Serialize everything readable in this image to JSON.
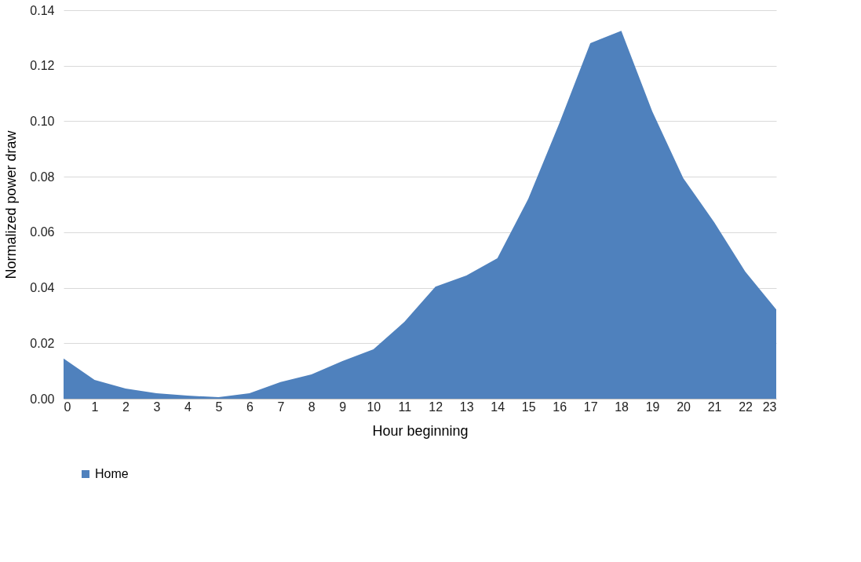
{
  "chart_data": {
    "type": "area",
    "xlabel": "Hour beginning",
    "ylabel": "Normalized power draw",
    "x": [
      0,
      1,
      2,
      3,
      4,
      5,
      6,
      7,
      8,
      9,
      10,
      11,
      12,
      13,
      14,
      15,
      16,
      17,
      18,
      19,
      20,
      21,
      22,
      23
    ],
    "series": [
      {
        "name": "Home",
        "color": "#4f81bd",
        "values": [
          0.0145,
          0.0068,
          0.0037,
          0.002,
          0.0011,
          0.0006,
          0.002,
          0.006,
          0.0088,
          0.0136,
          0.0178,
          0.0277,
          0.0404,
          0.0444,
          0.0506,
          0.0721,
          0.0993,
          0.1281,
          0.1326,
          0.1035,
          0.0795,
          0.0636,
          0.0458,
          0.0322
        ]
      }
    ],
    "xlim": [
      0,
      23
    ],
    "xticks": [
      0,
      1,
      2,
      3,
      4,
      5,
      6,
      7,
      8,
      9,
      10,
      11,
      12,
      13,
      14,
      15,
      16,
      17,
      18,
      19,
      20,
      21,
      22,
      23
    ],
    "ylim": [
      0,
      0.14
    ],
    "yticks": [
      {
        "value": 0,
        "label": "0.00"
      },
      {
        "value": 0.02,
        "label": "0.02"
      },
      {
        "value": 0.04,
        "label": "0.04"
      },
      {
        "value": 0.06,
        "label": "0.06"
      },
      {
        "value": 0.08,
        "label": "0.08"
      },
      {
        "value": 0.1,
        "label": "0.10"
      },
      {
        "value": 0.12,
        "label": "0.12"
      },
      {
        "value": 0.14,
        "label": "0.14"
      }
    ],
    "grid": "y",
    "legend": "bottom"
  }
}
